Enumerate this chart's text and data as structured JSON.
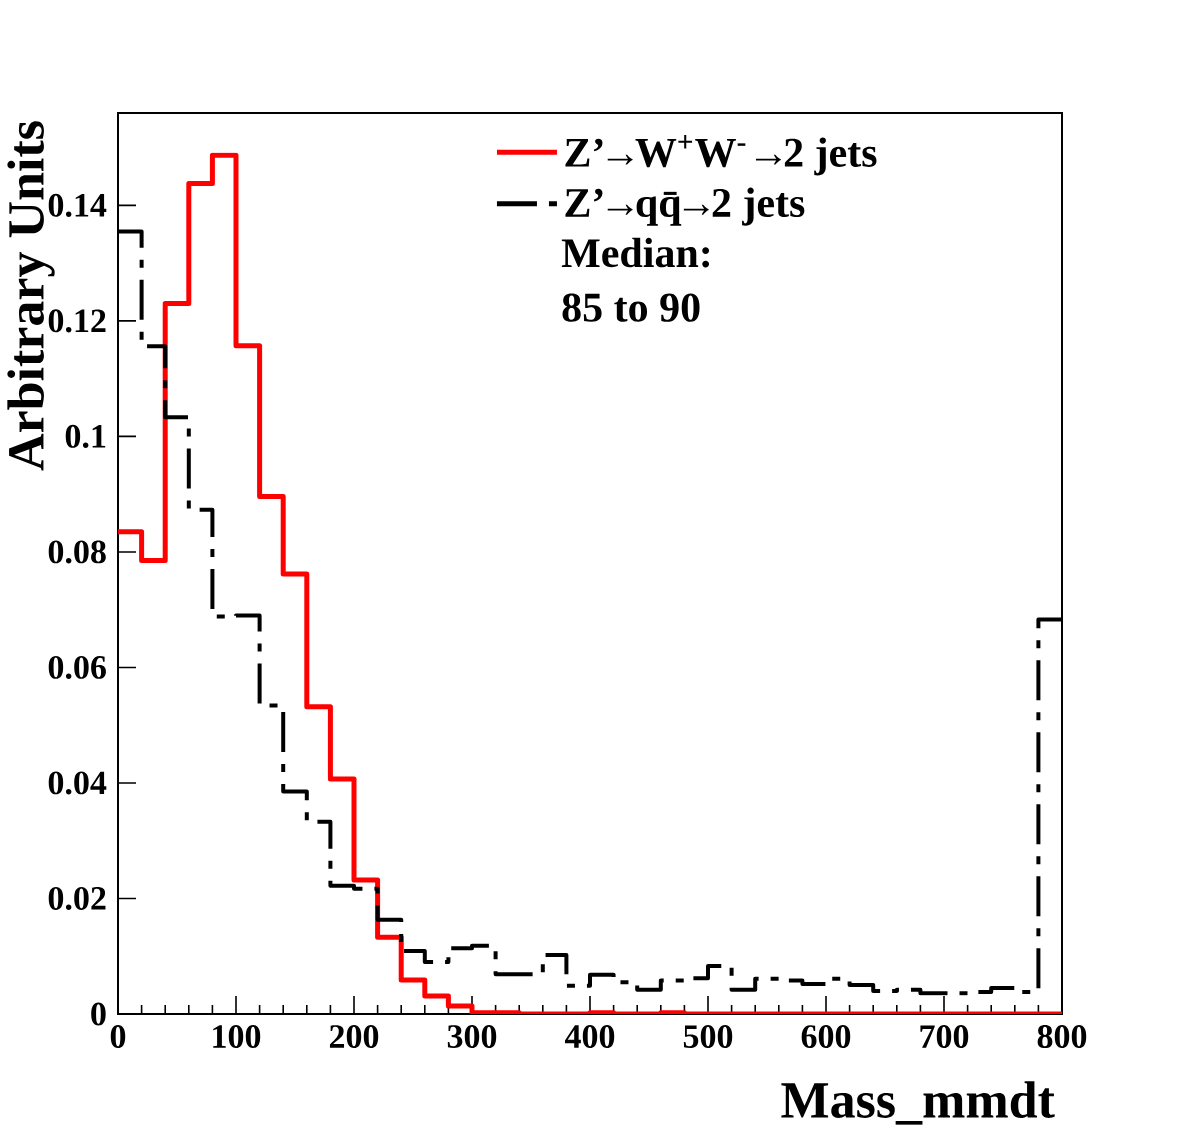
{
  "chart_data": {
    "type": "histogram",
    "xlabel": "Mass_mmdt",
    "ylabel": "Arbitrary Units",
    "bins": [
      0,
      20,
      40,
      60,
      80,
      100,
      120,
      140,
      160,
      180,
      200,
      220,
      240,
      260,
      280,
      300,
      320,
      340,
      360,
      380,
      400,
      420,
      440,
      460,
      480,
      500,
      520,
      540,
      560,
      580,
      600,
      620,
      640,
      660,
      680,
      700,
      720,
      740,
      760,
      780,
      800
    ],
    "series": [
      {
        "name": "Z’→W$^{+}$W$^{-}$→2 jets",
        "color": "#ff0000",
        "line_style": "solid",
        "values": [
          0.0835,
          0.0785,
          0.123,
          0.1438,
          0.1487,
          0.1157,
          0.0896,
          0.0762,
          0.0532,
          0.0407,
          0.0232,
          0.0133,
          0.0059,
          0.0031,
          0.0014,
          0.0002,
          0.0002,
          0,
          0,
          0,
          0.0002,
          0,
          0,
          0.0002,
          0,
          0,
          0,
          0,
          0,
          0,
          0,
          0,
          0,
          0,
          0,
          0,
          0,
          0,
          0,
          0
        ]
      },
      {
        "name": "Z’→qq̄→2 jets",
        "color": "#000000",
        "line_style": "dashed",
        "values": [
          0.1355,
          0.1156,
          0.1033,
          0.0873,
          0.0688,
          0.069,
          0.0534,
          0.0385,
          0.0333,
          0.0222,
          0.0217,
          0.0163,
          0.0109,
          0.009,
          0.0114,
          0.0118,
          0.0069,
          0.0069,
          0.0102,
          0.0049,
          0.0068,
          0.0055,
          0.0042,
          0.0058,
          0.0062,
          0.0083,
          0.0042,
          0.0061,
          0.0058,
          0.0052,
          0.0061,
          0.005,
          0.004,
          0.0042,
          0.0036,
          0.0036,
          0.0038,
          0.0045,
          0.0038,
          0.0683
        ]
      }
    ],
    "xlim": [
      0,
      800
    ],
    "xticks": [
      0,
      100,
      200,
      300,
      400,
      500,
      600,
      700,
      800
    ],
    "ylim": [
      0,
      0.156
    ],
    "yticks": [
      0,
      0.02,
      0.04,
      0.06,
      0.08,
      0.1,
      0.12,
      0.14
    ],
    "legend": "top right",
    "annotations": [
      "Median:",
      "85 to 90"
    ]
  }
}
